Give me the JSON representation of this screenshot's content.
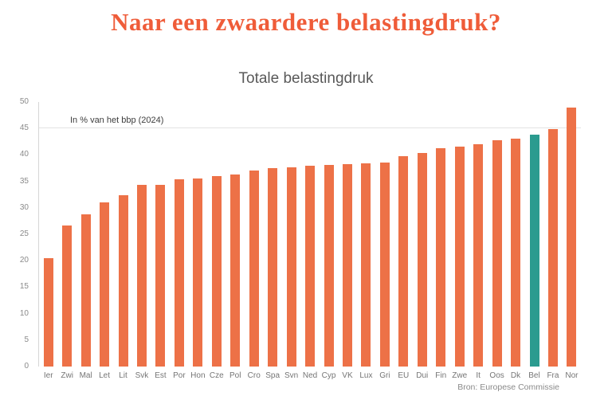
{
  "page": {
    "title": "Naar een zwaardere belastingdruk?",
    "source": "Bron: Europese Commissie"
  },
  "colors": {
    "title": "#EF5C39",
    "bar": "#ED7147",
    "highlight": "#2B9B8F",
    "axis_text": "#8a8a8a"
  },
  "chart_data": {
    "type": "bar",
    "title": "Totale belastingdruk",
    "annotation": "In % van het bbp (2024)",
    "categories": [
      "Ier",
      "Zwi",
      "Mal",
      "Let",
      "Lit",
      "Svk",
      "Est",
      "Por",
      "Hon",
      "Cze",
      "Pol",
      "Cro",
      "Spa",
      "Svn",
      "Ned",
      "Cyp",
      "VK",
      "Lux",
      "Gri",
      "EU",
      "Dui",
      "Fin",
      "Zwe",
      "It",
      "Oos",
      "Dk",
      "Bel",
      "Fra",
      "Nor"
    ],
    "values": [
      20.5,
      26.6,
      28.8,
      31.1,
      32.4,
      34.3,
      34.4,
      35.4,
      35.5,
      36.0,
      36.3,
      37.1,
      37.5,
      37.7,
      37.9,
      38.1,
      38.3,
      38.4,
      38.6,
      39.8,
      40.4,
      41.3,
      41.6,
      42.0,
      42.8,
      43.0,
      43.9,
      44.9,
      48.9
    ],
    "highlight_index": 26,
    "highlight_category": "Bel",
    "bar_color": "#ED7147",
    "highlight_color": "#2B9B8F",
    "xlabel": "",
    "ylabel": "",
    "ylim": [
      0,
      50
    ],
    "ytick_step": 5,
    "gridline_at": 45,
    "legend": "none",
    "grid": "single horizontal line at 45"
  }
}
